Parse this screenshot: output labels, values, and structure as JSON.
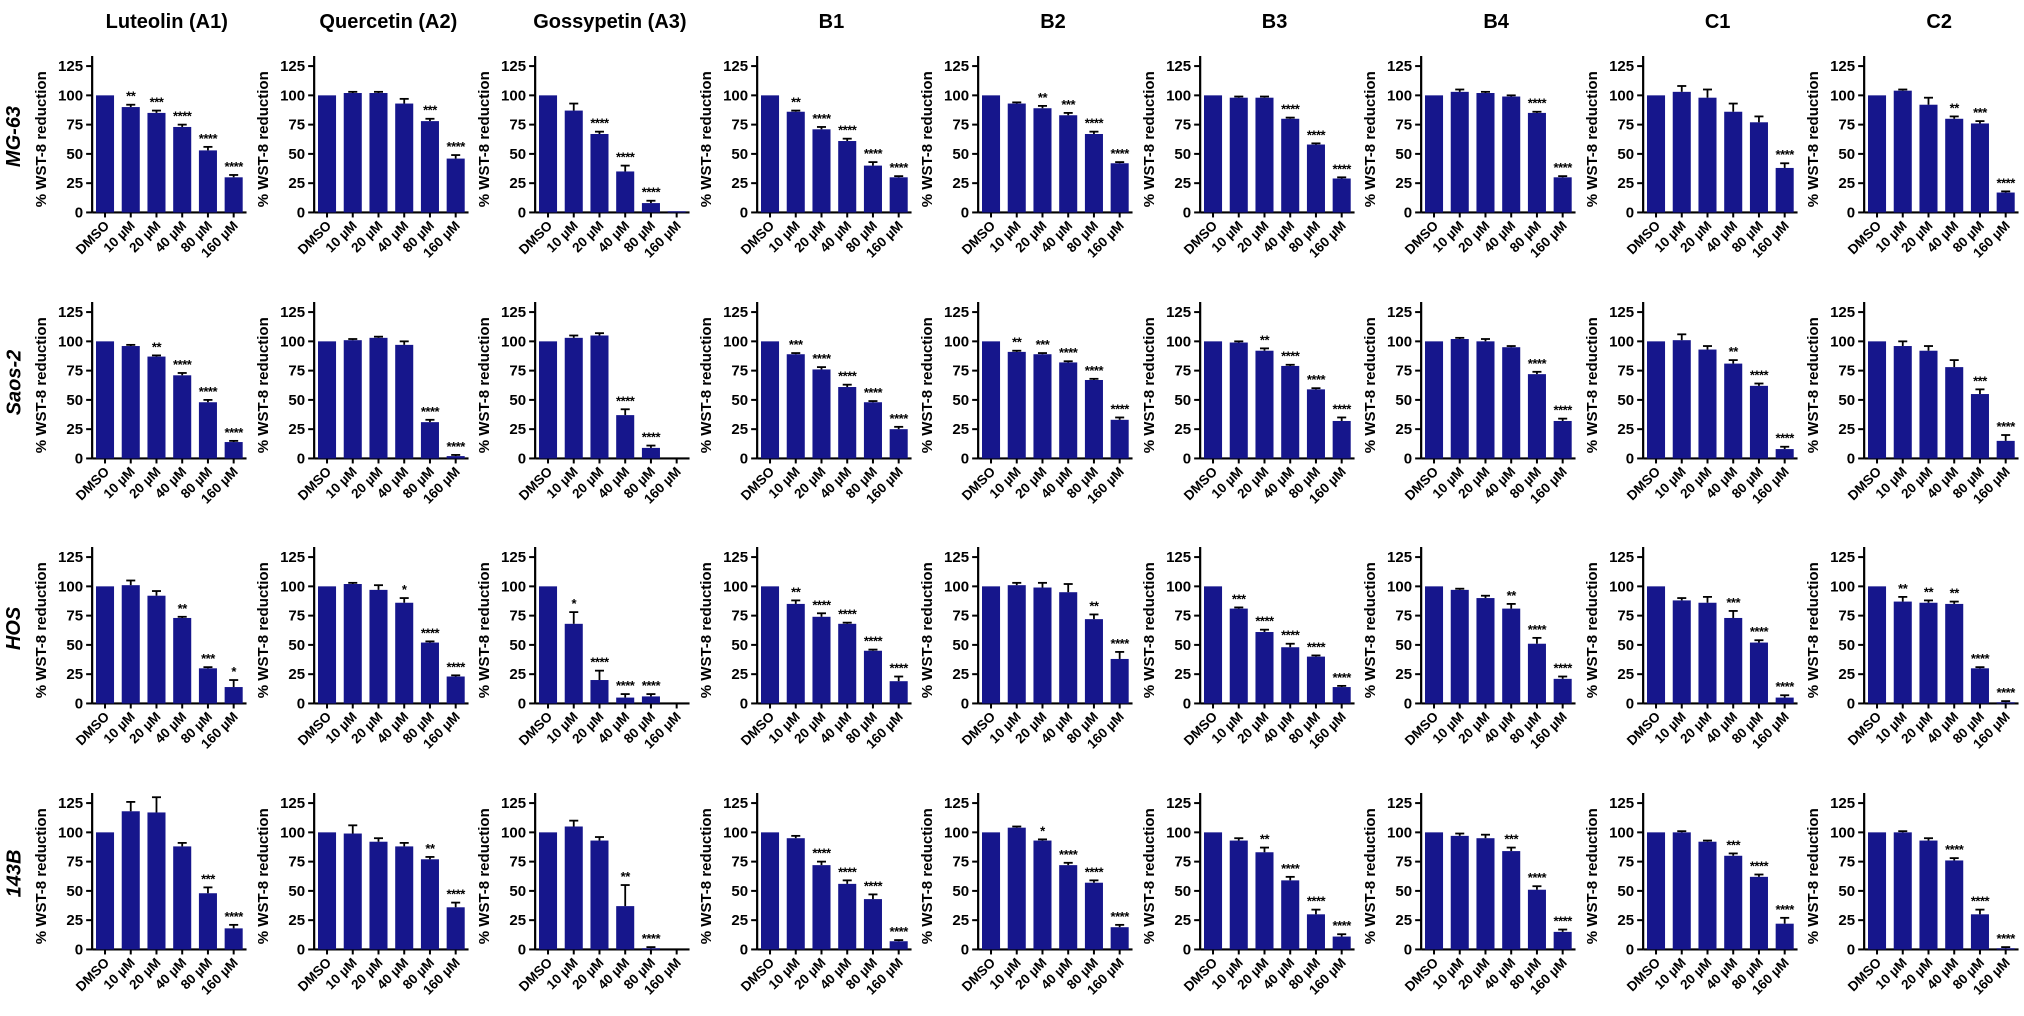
{
  "figure": {
    "y_axis_label": "% WST-8 reduction",
    "y_ticks": [
      0,
      25,
      50,
      75,
      100,
      125
    ],
    "ylim": [
      0,
      125
    ],
    "x_categories": [
      "DMSO",
      "10 µM",
      "20 µM",
      "40 µM",
      "80 µM",
      "160 µM"
    ],
    "bar_color": "#16168C",
    "error_color": "#000000",
    "col_titles": [
      "Luteolin (A1)",
      "Quercetin (A2)",
      "Gossypetin (A3)",
      "B1",
      "B2",
      "B3",
      "B4",
      "C1",
      "C2"
    ],
    "row_labels": [
      "MG-63",
      "Saos-2",
      "HOS",
      "143B"
    ]
  },
  "chart_data": [
    {
      "type": "bar",
      "row": "MG-63",
      "col": "Luteolin (A1)",
      "values": [
        100,
        90,
        85,
        73,
        53,
        30
      ],
      "errors": [
        0,
        2,
        2,
        2,
        3,
        2
      ],
      "significance": [
        "",
        "**",
        "***",
        "****",
        "****",
        "****"
      ]
    },
    {
      "type": "bar",
      "row": "MG-63",
      "col": "Quercetin (A2)",
      "values": [
        100,
        102,
        102,
        93,
        78,
        46
      ],
      "errors": [
        0,
        1,
        1,
        4,
        2,
        3
      ],
      "significance": [
        "",
        "",
        "",
        "",
        "***",
        "****"
      ]
    },
    {
      "type": "bar",
      "row": "MG-63",
      "col": "Gossypetin (A3)",
      "values": [
        100,
        87,
        67,
        35,
        8,
        1
      ],
      "errors": [
        0,
        6,
        2,
        5,
        2,
        0
      ],
      "significance": [
        "",
        "",
        "****",
        "****",
        "****",
        ""
      ]
    },
    {
      "type": "bar",
      "row": "MG-63",
      "col": "B1",
      "values": [
        100,
        86,
        71,
        61,
        40,
        30
      ],
      "errors": [
        0,
        1,
        2,
        2,
        3,
        1
      ],
      "significance": [
        "",
        "**",
        "****",
        "****",
        "****",
        "****"
      ]
    },
    {
      "type": "bar",
      "row": "MG-63",
      "col": "B2",
      "values": [
        100,
        93,
        89,
        83,
        67,
        42
      ],
      "errors": [
        0,
        1,
        2,
        2,
        2,
        1
      ],
      "significance": [
        "",
        "",
        "**",
        "***",
        "****",
        "****"
      ]
    },
    {
      "type": "bar",
      "row": "MG-63",
      "col": "B3",
      "values": [
        100,
        98,
        98,
        80,
        58,
        29
      ],
      "errors": [
        0,
        1,
        1,
        1,
        1,
        1
      ],
      "significance": [
        "",
        "",
        "",
        "****",
        "****",
        "****"
      ]
    },
    {
      "type": "bar",
      "row": "MG-63",
      "col": "B4",
      "values": [
        100,
        103,
        102,
        99,
        85,
        30
      ],
      "errors": [
        0,
        2,
        1,
        1,
        1,
        1
      ],
      "significance": [
        "",
        "",
        "",
        "",
        "****",
        "****"
      ]
    },
    {
      "type": "bar",
      "row": "MG-63",
      "col": "C1",
      "values": [
        100,
        103,
        98,
        86,
        77,
        38
      ],
      "errors": [
        0,
        5,
        7,
        7,
        5,
        4
      ],
      "significance": [
        "",
        "",
        "",
        "",
        "",
        "****"
      ]
    },
    {
      "type": "bar",
      "row": "MG-63",
      "col": "C2",
      "values": [
        100,
        104,
        92,
        80,
        76,
        17
      ],
      "errors": [
        0,
        1,
        6,
        2,
        2,
        1
      ],
      "significance": [
        "",
        "",
        "",
        "**",
        "***",
        "****"
      ]
    },
    {
      "type": "bar",
      "row": "Saos-2",
      "col": "Luteolin (A1)",
      "values": [
        100,
        96,
        87,
        71,
        48,
        14
      ],
      "errors": [
        0,
        1,
        1,
        2,
        2,
        1
      ],
      "significance": [
        "",
        "",
        "**",
        "****",
        "****",
        "****"
      ]
    },
    {
      "type": "bar",
      "row": "Saos-2",
      "col": "Quercetin (A2)",
      "values": [
        100,
        101,
        103,
        97,
        31,
        2
      ],
      "errors": [
        0,
        1,
        1,
        3,
        2,
        1
      ],
      "significance": [
        "",
        "",
        "",
        "",
        "****",
        "****"
      ]
    },
    {
      "type": "bar",
      "row": "Saos-2",
      "col": "Gossypetin (A3)",
      "values": [
        100,
        103,
        105,
        37,
        9,
        0
      ],
      "errors": [
        0,
        2,
        2,
        5,
        2,
        0
      ],
      "significance": [
        "",
        "",
        "",
        "****",
        "****",
        ""
      ]
    },
    {
      "type": "bar",
      "row": "Saos-2",
      "col": "B1",
      "values": [
        100,
        89,
        76,
        61,
        48,
        25
      ],
      "errors": [
        0,
        1,
        2,
        2,
        1,
        2
      ],
      "significance": [
        "",
        "***",
        "****",
        "****",
        "****",
        "****"
      ]
    },
    {
      "type": "bar",
      "row": "Saos-2",
      "col": "B2",
      "values": [
        100,
        91,
        89,
        82,
        67,
        33
      ],
      "errors": [
        0,
        1,
        1,
        1,
        1,
        2
      ],
      "significance": [
        "",
        "**",
        "***",
        "****",
        "****",
        "****"
      ]
    },
    {
      "type": "bar",
      "row": "Saos-2",
      "col": "B3",
      "values": [
        100,
        99,
        92,
        79,
        59,
        32
      ],
      "errors": [
        0,
        1,
        2,
        1,
        1,
        3
      ],
      "significance": [
        "",
        "",
        "**",
        "****",
        "****",
        "****"
      ]
    },
    {
      "type": "bar",
      "row": "Saos-2",
      "col": "B4",
      "values": [
        100,
        102,
        100,
        95,
        72,
        32
      ],
      "errors": [
        0,
        1,
        2,
        1,
        2,
        2
      ],
      "significance": [
        "",
        "",
        "",
        "",
        "****",
        "****"
      ]
    },
    {
      "type": "bar",
      "row": "Saos-2",
      "col": "C1",
      "values": [
        100,
        101,
        93,
        81,
        62,
        8
      ],
      "errors": [
        0,
        5,
        3,
        3,
        2,
        2
      ],
      "significance": [
        "",
        "",
        "",
        "**",
        "****",
        "****"
      ]
    },
    {
      "type": "bar",
      "row": "Saos-2",
      "col": "C2",
      "values": [
        100,
        96,
        92,
        78,
        55,
        15
      ],
      "errors": [
        0,
        4,
        4,
        6,
        4,
        5
      ],
      "significance": [
        "",
        "",
        "",
        "",
        "***",
        "****"
      ]
    },
    {
      "type": "bar",
      "row": "HOS",
      "col": "Luteolin (A1)",
      "values": [
        100,
        101,
        92,
        73,
        30,
        14
      ],
      "errors": [
        0,
        4,
        4,
        1,
        1,
        6
      ],
      "significance": [
        "",
        "",
        "",
        "**",
        "***",
        "*"
      ]
    },
    {
      "type": "bar",
      "row": "HOS",
      "col": "Quercetin (A2)",
      "values": [
        100,
        102,
        97,
        86,
        52,
        23
      ],
      "errors": [
        0,
        1,
        4,
        4,
        1,
        1
      ],
      "significance": [
        "",
        "",
        "",
        "*",
        "****",
        "****"
      ]
    },
    {
      "type": "bar",
      "row": "HOS",
      "col": "Gossypetin (A3)",
      "values": [
        100,
        68,
        20,
        5,
        6,
        0
      ],
      "errors": [
        0,
        10,
        8,
        3,
        2,
        0
      ],
      "significance": [
        "",
        "*",
        "****",
        "****",
        "****",
        ""
      ]
    },
    {
      "type": "bar",
      "row": "HOS",
      "col": "B1",
      "values": [
        100,
        85,
        74,
        68,
        45,
        19
      ],
      "errors": [
        0,
        3,
        3,
        1,
        1,
        4
      ],
      "significance": [
        "",
        "**",
        "****",
        "****",
        "****",
        "****"
      ]
    },
    {
      "type": "bar",
      "row": "HOS",
      "col": "B2",
      "values": [
        100,
        101,
        99,
        95,
        72,
        38
      ],
      "errors": [
        0,
        2,
        4,
        7,
        4,
        6
      ],
      "significance": [
        "",
        "",
        "",
        "",
        "**",
        "****"
      ]
    },
    {
      "type": "bar",
      "row": "HOS",
      "col": "B3",
      "values": [
        100,
        81,
        61,
        48,
        40,
        14
      ],
      "errors": [
        0,
        1,
        2,
        3,
        1,
        1
      ],
      "significance": [
        "",
        "***",
        "****",
        "****",
        "****",
        "****"
      ]
    },
    {
      "type": "bar",
      "row": "HOS",
      "col": "B4",
      "values": [
        100,
        97,
        90,
        81,
        51,
        21
      ],
      "errors": [
        0,
        1,
        2,
        4,
        5,
        2
      ],
      "significance": [
        "",
        "",
        "",
        "**",
        "****",
        "****"
      ]
    },
    {
      "type": "bar",
      "row": "HOS",
      "col": "C1",
      "values": [
        100,
        88,
        86,
        73,
        52,
        5
      ],
      "errors": [
        0,
        2,
        5,
        6,
        2,
        2
      ],
      "significance": [
        "",
        "",
        "",
        "***",
        "****",
        "****"
      ]
    },
    {
      "type": "bar",
      "row": "HOS",
      "col": "C2",
      "values": [
        100,
        87,
        86,
        85,
        30,
        1
      ],
      "errors": [
        0,
        4,
        2,
        2,
        1,
        1
      ],
      "significance": [
        "",
        "**",
        "**",
        "**",
        "****",
        "****"
      ]
    },
    {
      "type": "bar",
      "row": "143B",
      "col": "Luteolin (A1)",
      "values": [
        100,
        118,
        117,
        88,
        48,
        18
      ],
      "errors": [
        0,
        8,
        13,
        3,
        5,
        3
      ],
      "significance": [
        "",
        "",
        "",
        "",
        "***",
        "****"
      ]
    },
    {
      "type": "bar",
      "row": "143B",
      "col": "Quercetin (A2)",
      "values": [
        100,
        99,
        92,
        88,
        77,
        36
      ],
      "errors": [
        0,
        7,
        3,
        3,
        2,
        4
      ],
      "significance": [
        "",
        "",
        "",
        "",
        "**",
        "****"
      ]
    },
    {
      "type": "bar",
      "row": "143B",
      "col": "Gossypetin (A3)",
      "values": [
        100,
        105,
        93,
        37,
        1,
        0
      ],
      "errors": [
        0,
        5,
        3,
        18,
        1,
        0
      ],
      "significance": [
        "",
        "",
        "",
        "**",
        "****",
        ""
      ]
    },
    {
      "type": "bar",
      "row": "143B",
      "col": "B1",
      "values": [
        100,
        95,
        72,
        56,
        43,
        7
      ],
      "errors": [
        0,
        2,
        3,
        3,
        4,
        1
      ],
      "significance": [
        "",
        "",
        "****",
        "****",
        "****",
        "****"
      ]
    },
    {
      "type": "bar",
      "row": "143B",
      "col": "B2",
      "values": [
        100,
        104,
        93,
        72,
        57,
        19
      ],
      "errors": [
        0,
        1,
        1,
        2,
        2,
        2
      ],
      "significance": [
        "",
        "",
        "*",
        "****",
        "****",
        "****"
      ]
    },
    {
      "type": "bar",
      "row": "143B",
      "col": "B3",
      "values": [
        100,
        93,
        83,
        59,
        30,
        11
      ],
      "errors": [
        0,
        2,
        4,
        3,
        4,
        2
      ],
      "significance": [
        "",
        "",
        "**",
        "****",
        "****",
        "****"
      ]
    },
    {
      "type": "bar",
      "row": "143B",
      "col": "B4",
      "values": [
        100,
        97,
        95,
        84,
        51,
        15
      ],
      "errors": [
        0,
        2,
        3,
        3,
        3,
        2
      ],
      "significance": [
        "",
        "",
        "",
        "***",
        "****",
        "****"
      ]
    },
    {
      "type": "bar",
      "row": "143B",
      "col": "C1",
      "values": [
        100,
        100,
        92,
        80,
        62,
        22
      ],
      "errors": [
        0,
        1,
        1,
        2,
        2,
        5
      ],
      "significance": [
        "",
        "",
        "",
        "***",
        "****",
        "****"
      ]
    },
    {
      "type": "bar",
      "row": "143B",
      "col": "C2",
      "values": [
        100,
        100,
        93,
        76,
        30,
        1
      ],
      "errors": [
        0,
        1,
        2,
        2,
        4,
        1
      ],
      "significance": [
        "",
        "",
        "",
        "****",
        "****",
        "****"
      ]
    }
  ]
}
